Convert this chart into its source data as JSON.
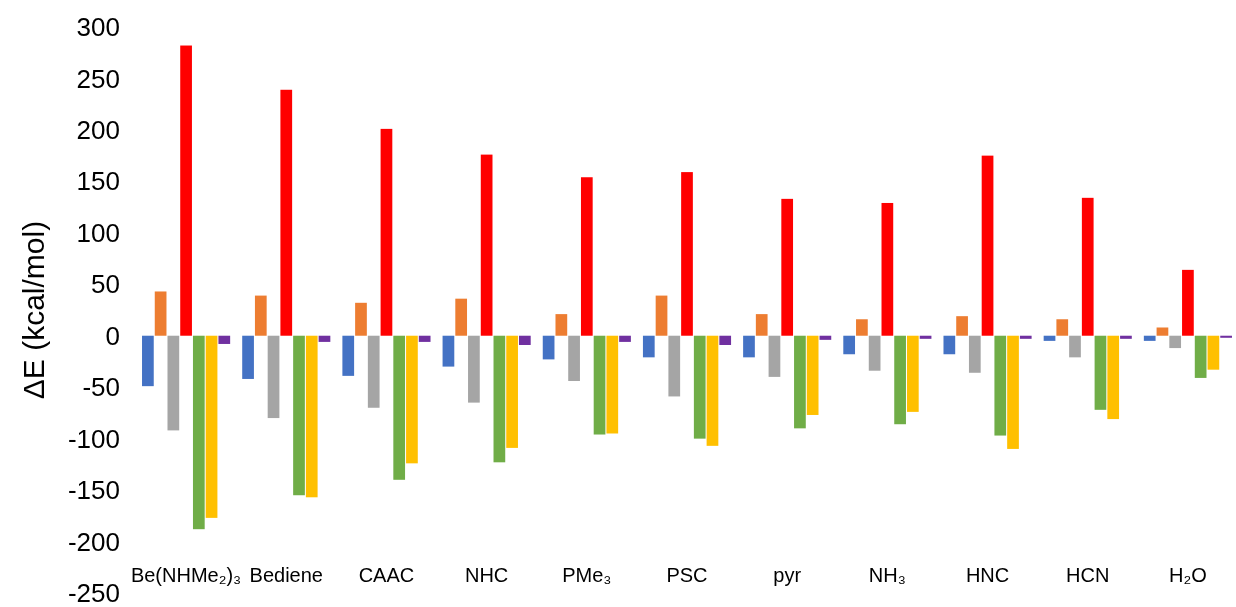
{
  "chart_data": {
    "type": "bar",
    "ylabel": "ΔE (kcal/mol)",
    "categories": [
      "Be(NHMe₂)₃",
      "Bediene",
      "CAAC",
      "NHC",
      "PMe₃",
      "PSC",
      "pyr",
      "NH₃",
      "HNC",
      "HCN",
      "H₂O"
    ],
    "series": [
      {
        "color": "#4472c4",
        "values": [
          -49,
          -42,
          -39,
          -30,
          -23,
          -21,
          -21,
          -18,
          -18,
          -5,
          -5
        ]
      },
      {
        "color": "#ed7d31",
        "values": [
          43,
          39,
          32,
          36,
          21,
          39,
          21,
          16,
          19,
          16,
          8
        ]
      },
      {
        "color": "#a5a5a5",
        "values": [
          -92,
          -80,
          -70,
          -65,
          -44,
          -59,
          -40,
          -34,
          -36,
          -21,
          -12
        ]
      },
      {
        "color": "#ff0000",
        "values": [
          282,
          239,
          201,
          176,
          154,
          159,
          133,
          129,
          175,
          134,
          64
        ]
      },
      {
        "color": "#70ad47",
        "values": [
          -188,
          -155,
          -140,
          -123,
          -96,
          -100,
          -90,
          -86,
          -97,
          -72,
          -41
        ]
      },
      {
        "color": "#ffc000",
        "values": [
          -177,
          -157,
          -124,
          -109,
          -95,
          -107,
          -77,
          -74,
          -110,
          -81,
          -33
        ]
      },
      {
        "color": "#7030a0",
        "values": [
          -8,
          -6,
          -6,
          -9,
          -6,
          -9,
          -4,
          -3,
          -3,
          -3,
          -2
        ]
      }
    ],
    "ylim": [
      -250,
      300
    ],
    "yticks": [
      -250,
      -200,
      -150,
      -100,
      -50,
      0,
      50,
      100,
      150,
      200,
      250,
      300
    ],
    "grid": false
  }
}
